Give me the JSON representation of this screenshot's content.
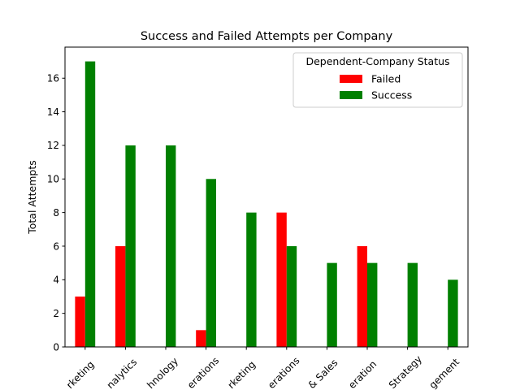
{
  "chart_data": {
    "type": "bar",
    "title": "Success and Failed Attempts per Company",
    "xlabel": "",
    "ylabel": "Total Attempts",
    "ylim": [
      0,
      17.85
    ],
    "yticks": [
      0,
      2,
      4,
      6,
      8,
      10,
      12,
      14,
      16
    ],
    "grid": false,
    "legend": {
      "title": "Dependent-Company Status",
      "placement": "top-right"
    },
    "categories": [
      "rketing",
      "nalytics",
      "hnology",
      "erations",
      "rketing",
      "erations",
      "& Sales",
      "eration",
      "Strategy",
      "gement"
    ],
    "series": [
      {
        "name": "Failed",
        "color": "#ff0000",
        "values": [
          3,
          6,
          0,
          1,
          0,
          8,
          0,
          6,
          0,
          0
        ]
      },
      {
        "name": "Success",
        "color": "#008000",
        "values": [
          17,
          12,
          12,
          10,
          8,
          6,
          5,
          5,
          5,
          4
        ]
      }
    ]
  }
}
